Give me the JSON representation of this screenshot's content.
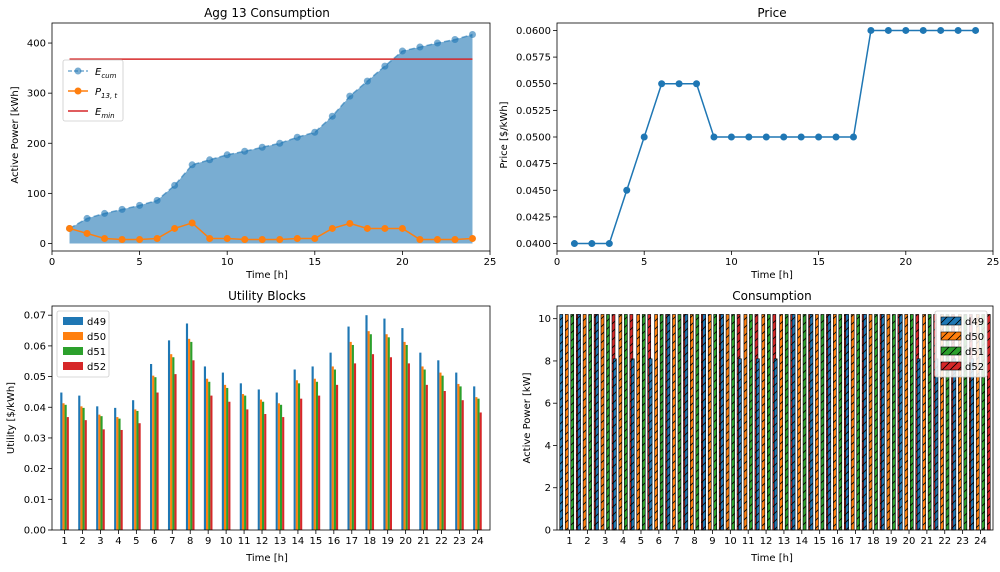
{
  "chart_data": [
    {
      "type": "area",
      "title": "Agg 13 Consumption",
      "xlabel": "Time [h]",
      "ylabel": "Active Power [kWh]",
      "xlim": [
        0,
        25
      ],
      "ylim": [
        -15,
        440
      ],
      "xticks": [
        0,
        5,
        10,
        15,
        20,
        25
      ],
      "yticks": [
        0,
        100,
        200,
        300,
        400
      ],
      "legend_position": "upper-left",
      "x": [
        1,
        2,
        3,
        4,
        5,
        6,
        7,
        8,
        9,
        10,
        11,
        12,
        13,
        14,
        15,
        16,
        17,
        18,
        19,
        20,
        21,
        22,
        23,
        24
      ],
      "series": [
        {
          "name": "E_cum",
          "legend_main": "E",
          "legend_sub": "cum",
          "color": "#1f77b4",
          "style": "dashed-markers-filled",
          "values": [
            30,
            50,
            60,
            68,
            76,
            86,
            116,
            157,
            167,
            177,
            184,
            192,
            200,
            212,
            222,
            254,
            294,
            324,
            354,
            384,
            392,
            400,
            407,
            417
          ]
        },
        {
          "name": "P_13,t",
          "legend_main": "P",
          "legend_sub": "13, t",
          "color": "#ff7f0e",
          "style": "line-markers",
          "values": [
            30,
            20,
            10,
            8,
            8,
            10,
            30,
            41,
            10,
            10,
            8,
            8,
            8,
            10,
            10,
            30,
            40,
            30,
            30,
            30,
            8,
            8,
            8,
            10
          ]
        },
        {
          "name": "E_min",
          "legend_main": "E",
          "legend_sub": "min",
          "color": "#d62728",
          "style": "hline",
          "values": [
            368,
            368,
            368,
            368,
            368,
            368,
            368,
            368,
            368,
            368,
            368,
            368,
            368,
            368,
            368,
            368,
            368,
            368,
            368,
            368,
            368,
            368,
            368,
            368
          ]
        }
      ]
    },
    {
      "type": "line",
      "title": "Price",
      "xlabel": "Time [h]",
      "ylabel": "Price [$/kWh]",
      "xlim": [
        0,
        25
      ],
      "ylim": [
        0.0393,
        0.0607
      ],
      "xticks": [
        0,
        5,
        10,
        15,
        20,
        25
      ],
      "yticks": [
        0.04,
        0.0425,
        0.045,
        0.0475,
        0.05,
        0.0525,
        0.055,
        0.0575,
        0.06
      ],
      "ytick_labels": [
        "0.0400",
        "0.0425",
        "0.0450",
        "0.0475",
        "0.0500",
        "0.0525",
        "0.0550",
        "0.0575",
        "0.0600"
      ],
      "x": [
        1,
        2,
        3,
        4,
        5,
        6,
        7,
        8,
        9,
        10,
        11,
        12,
        13,
        14,
        15,
        16,
        17,
        18,
        19,
        20,
        21,
        22,
        23,
        24
      ],
      "series": [
        {
          "color": "#1f77b4",
          "values": [
            0.04,
            0.04,
            0.04,
            0.045,
            0.05,
            0.055,
            0.055,
            0.055,
            0.05,
            0.05,
            0.05,
            0.05,
            0.05,
            0.05,
            0.05,
            0.05,
            0.05,
            0.06,
            0.06,
            0.06,
            0.06,
            0.06,
            0.06,
            0.06
          ]
        }
      ]
    },
    {
      "type": "bar",
      "title": "Utility Blocks",
      "xlabel": "Time [h]",
      "ylabel": "Utility [$/kWh]",
      "ylim": [
        0,
        0.073
      ],
      "yticks": [
        0.0,
        0.01,
        0.02,
        0.03,
        0.04,
        0.05,
        0.06,
        0.07
      ],
      "ytick_labels": [
        "0.00",
        "0.01",
        "0.02",
        "0.03",
        "0.04",
        "0.05",
        "0.06",
        "0.07"
      ],
      "legend_position": "upper-left",
      "categories": [
        "1",
        "2",
        "3",
        "4",
        "5",
        "6",
        "7",
        "8",
        "9",
        "10",
        "11",
        "12",
        "13",
        "14",
        "15",
        "16",
        "17",
        "18",
        "19",
        "20",
        "21",
        "22",
        "23",
        "24"
      ],
      "series": [
        {
          "name": "d49",
          "color": "#1f77b4",
          "values": [
            0.0448,
            0.0438,
            0.0403,
            0.0398,
            0.0423,
            0.0541,
            0.0618,
            0.0673,
            0.0533,
            0.0513,
            0.0478,
            0.0458,
            0.0448,
            0.0523,
            0.0533,
            0.0578,
            0.0663,
            0.07,
            0.0689,
            0.0658,
            0.0578,
            0.0553,
            0.0513,
            0.0468
          ]
        },
        {
          "name": "d50",
          "color": "#ff7f0e",
          "values": [
            0.0413,
            0.0403,
            0.0376,
            0.0368,
            0.0393,
            0.0503,
            0.0573,
            0.0623,
            0.0493,
            0.0473,
            0.0443,
            0.0425,
            0.0413,
            0.0488,
            0.0493,
            0.0533,
            0.0613,
            0.0648,
            0.0638,
            0.0613,
            0.0533,
            0.0513,
            0.0476,
            0.0433
          ]
        },
        {
          "name": "d51",
          "color": "#2ca02c",
          "values": [
            0.0408,
            0.0398,
            0.0371,
            0.0363,
            0.0388,
            0.0498,
            0.0563,
            0.0613,
            0.0483,
            0.0463,
            0.0438,
            0.0418,
            0.0408,
            0.0478,
            0.0483,
            0.0523,
            0.0603,
            0.0638,
            0.0628,
            0.0603,
            0.0523,
            0.0503,
            0.0468,
            0.0428
          ]
        },
        {
          "name": "d52",
          "color": "#d62728",
          "values": [
            0.0368,
            0.0358,
            0.0328,
            0.0326,
            0.0348,
            0.0448,
            0.0508,
            0.0553,
            0.0438,
            0.0418,
            0.0393,
            0.0378,
            0.0368,
            0.0428,
            0.0438,
            0.0473,
            0.0543,
            0.0573,
            0.0563,
            0.0543,
            0.0473,
            0.0453,
            0.0423,
            0.0383
          ]
        }
      ]
    },
    {
      "type": "bar",
      "title": "Consumption",
      "xlabel": "Time [h]",
      "ylabel": "Active Power [kW]",
      "ylim": [
        0,
        10.6
      ],
      "yticks": [
        0,
        2,
        4,
        6,
        8,
        10
      ],
      "legend_position": "upper-right",
      "categories": [
        "1",
        "2",
        "3",
        "4",
        "5",
        "6",
        "7",
        "8",
        "9",
        "10",
        "11",
        "12",
        "13",
        "14",
        "15",
        "16",
        "17",
        "18",
        "19",
        "20",
        "21",
        "22",
        "23",
        "24"
      ],
      "series": [
        {
          "name": "d49",
          "color": "#1f77b4",
          "values": [
            10.2,
            10.2,
            10.2,
            8.1,
            8.1,
            8.1,
            10.2,
            10.2,
            10.2,
            10.2,
            8.1,
            8.1,
            8.1,
            10.2,
            10.2,
            10.2,
            10.2,
            10.2,
            10.2,
            10.2,
            8.1,
            8.1,
            8.1,
            8.1
          ]
        },
        {
          "name": "d50",
          "color": "#ff7f0e",
          "values": [
            10.2,
            10.2,
            10.2,
            10.2,
            10.2,
            10.2,
            10.2,
            10.2,
            10.2,
            10.2,
            10.2,
            10.2,
            10.2,
            10.2,
            10.2,
            10.2,
            10.2,
            10.2,
            10.2,
            10.2,
            10.2,
            10.2,
            10.2,
            10.2
          ]
        },
        {
          "name": "d51",
          "color": "#2ca02c",
          "values": [
            10.2,
            10.2,
            10.2,
            10.2,
            10.2,
            10.2,
            10.2,
            10.2,
            10.2,
            10.2,
            10.2,
            10.2,
            10.2,
            10.2,
            10.2,
            10.2,
            10.2,
            10.2,
            10.2,
            10.2,
            10.2,
            10.2,
            10.2,
            10.2
          ]
        },
        {
          "name": "d52",
          "color": "#d62728",
          "values": [
            10.2,
            10.2,
            10.2,
            10.2,
            10.2,
            10.2,
            10.2,
            10.2,
            10.2,
            10.2,
            10.2,
            10.2,
            10.2,
            10.2,
            10.2,
            10.2,
            10.2,
            10.2,
            10.2,
            10.2,
            10.2,
            10.2,
            10.2,
            10.2
          ]
        }
      ]
    }
  ]
}
